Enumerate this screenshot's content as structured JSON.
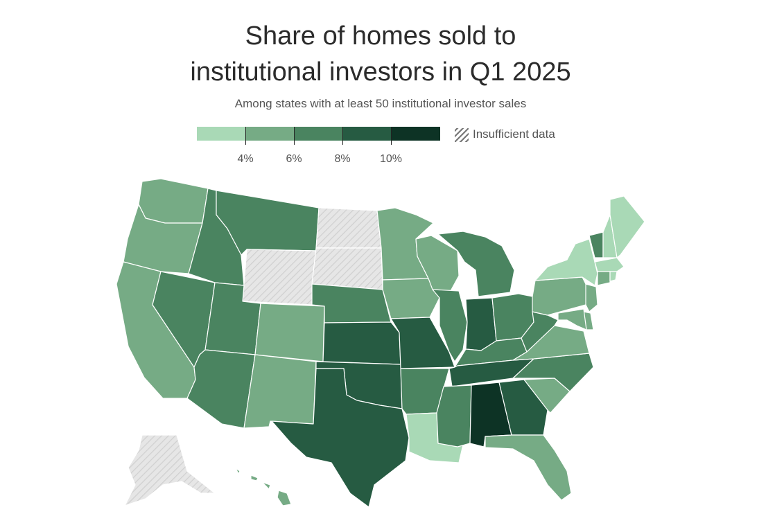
{
  "title_line1": "Share of homes sold to",
  "title_line2": "institutional investors in Q1 2025",
  "subtitle": "Among states with at least 50 institutional investor sales",
  "legend": {
    "ticks": [
      "4%",
      "6%",
      "8%",
      "10%"
    ],
    "insufficient_label": "Insufficient data",
    "colors": [
      "#a9d9b6",
      "#76ab85",
      "#4a8460",
      "#265b42",
      "#0d3325"
    ],
    "insufficient_color": "#e2e2e2"
  },
  "map_data": {
    "bins": [
      "<4%",
      "4–6%",
      "6–8%",
      "8–10%",
      ">10%"
    ],
    "states": {
      "WA": 1,
      "OR": 1,
      "CA": 1,
      "NV": 2,
      "ID": 2,
      "MT": 2,
      "WY": -1,
      "UT": 2,
      "AZ": 2,
      "CO": 1,
      "NM": 1,
      "ND": -1,
      "SD": -1,
      "NE": 2,
      "KS": 3,
      "OK": 3,
      "TX": 3,
      "MN": 1,
      "IA": 1,
      "MO": 3,
      "AR": 2,
      "LA": 0,
      "WI": 1,
      "IL": 2,
      "MI": 2,
      "IN": 3,
      "OH": 2,
      "KY": 2,
      "TN": 3,
      "MS": 2,
      "AL": 4,
      "GA": 3,
      "FL": 1,
      "SC": 1,
      "NC": 2,
      "VA": 1,
      "WV": 2,
      "PA": 1,
      "NY": 0,
      "VT": 2,
      "NH": 0,
      "ME": 0,
      "MA": 0,
      "CT": 1,
      "RI": 0,
      "NJ": 1,
      "DE": 1,
      "MD": 1,
      "AK": -1,
      "HI": 1
    }
  }
}
